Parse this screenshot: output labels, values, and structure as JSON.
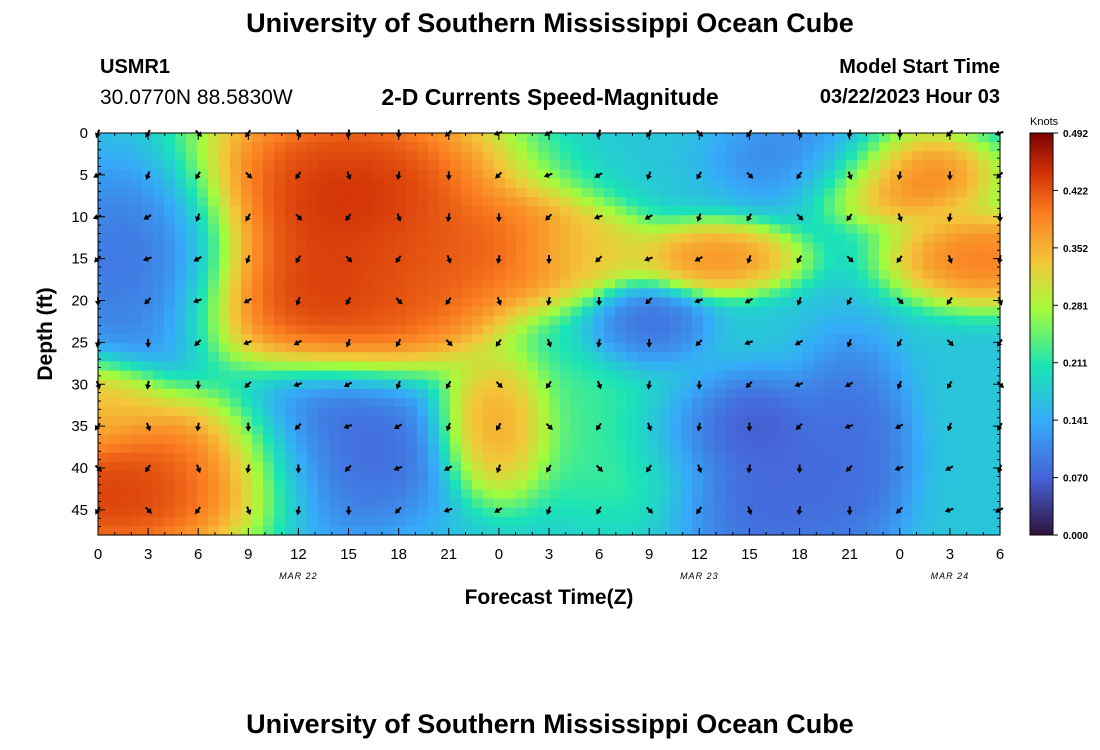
{
  "header": {
    "title": "University of Southern Mississippi Ocean Cube",
    "station_id": "USMR1",
    "coords": "30.0770N  88.5830W",
    "chart_title": "2-D Currents Speed-Magnitude",
    "model_label": "Model Start Time",
    "model_time": "03/22/2023 Hour 03"
  },
  "footer": {
    "title": "University of Southern Mississippi Ocean Cube"
  },
  "chart_data": {
    "type": "heatmap",
    "title": "2-D Currents Speed-Magnitude",
    "xlabel": "Forecast Time(Z)",
    "ylabel": "Depth (ft)",
    "xlim": [
      0,
      54
    ],
    "ylim": [
      0,
      48
    ],
    "x_ticks": [
      "0",
      "3",
      "6",
      "9",
      "12",
      "15",
      "18",
      "21",
      "0",
      "3",
      "6",
      "9",
      "12",
      "15",
      "18",
      "21",
      "0",
      "3",
      "6"
    ],
    "y_ticks": [
      0,
      5,
      10,
      15,
      20,
      25,
      30,
      35,
      40,
      45
    ],
    "day_labels": [
      {
        "label": "MAR 22",
        "at": 12
      },
      {
        "label": "MAR 23",
        "at": 36
      },
      {
        "label": "MAR 24",
        "at": 51
      }
    ],
    "colorbar": {
      "unit": "Knots",
      "ticks": [
        "0.492",
        "0.422",
        "0.352",
        "0.281",
        "0.211",
        "0.141",
        "0.070",
        "0.000"
      ],
      "min": 0.0,
      "max": 0.492
    },
    "speed_hotspots": [
      {
        "t": 1,
        "d": 43,
        "speed": 0.47,
        "rt": 5,
        "rd": 6
      },
      {
        "t": 6,
        "d": 40,
        "speed": 0.43,
        "rt": 5,
        "rd": 6
      },
      {
        "t": 0,
        "d": 33,
        "speed": 0.36,
        "rt": 3,
        "rd": 4
      },
      {
        "t": 15,
        "d": 8,
        "speed": 0.48,
        "rt": 7,
        "rd": 10
      },
      {
        "t": 14,
        "d": 20,
        "speed": 0.46,
        "rt": 6,
        "rd": 6
      },
      {
        "t": 19,
        "d": 18,
        "speed": 0.42,
        "rt": 4,
        "rd": 6
      },
      {
        "t": 24,
        "d": 14,
        "speed": 0.43,
        "rt": 5,
        "rd": 5
      },
      {
        "t": 24,
        "d": 35,
        "speed": 0.39,
        "rt": 2.5,
        "rd": 6
      },
      {
        "t": 32,
        "d": 35,
        "speed": 0.24,
        "rt": 5,
        "rd": 8
      },
      {
        "t": 37,
        "d": 15,
        "speed": 0.4,
        "rt": 3.5,
        "rd": 3
      },
      {
        "t": 48,
        "d": 5,
        "speed": 0.43,
        "rt": 4,
        "rd": 4
      },
      {
        "t": 53,
        "d": 15,
        "speed": 0.42,
        "rt": 4,
        "rd": 4
      },
      {
        "t": 29,
        "d": 14,
        "speed": 0.33,
        "rt": 3,
        "rd": 3
      },
      {
        "t": 3,
        "d": 15,
        "speed": 0.07,
        "rt": 4,
        "rd": 9
      },
      {
        "t": 33,
        "d": 24,
        "speed": 0.06,
        "rt": 2.5,
        "rd": 4
      },
      {
        "t": 37,
        "d": 35,
        "speed": 0.02,
        "rt": 4,
        "rd": 5
      },
      {
        "t": 14,
        "d": 38,
        "speed": 0.06,
        "rt": 5,
        "rd": 7
      },
      {
        "t": 43,
        "d": 3,
        "speed": 0.09,
        "rt": 4,
        "rd": 4
      },
      {
        "t": 45,
        "d": 38,
        "speed": 0.07,
        "rt": 2.5,
        "rd": 9
      },
      {
        "t": 40,
        "d": 43,
        "speed": 0.06,
        "rt": 4,
        "rd": 6
      }
    ],
    "arrow_grid": {
      "times": [
        0,
        3,
        6,
        9,
        12,
        15,
        18,
        21,
        24,
        27,
        30,
        33,
        36,
        39,
        42,
        45,
        48,
        51,
        54
      ],
      "depths": [
        0,
        5,
        10,
        15,
        20,
        25,
        30,
        35,
        40,
        45
      ]
    }
  }
}
